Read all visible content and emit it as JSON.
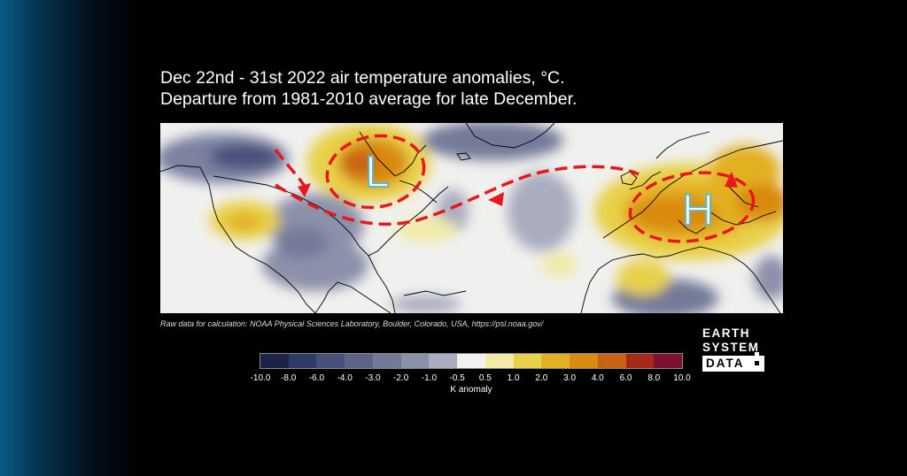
{
  "title": {
    "line1": "Dec 22nd - 31st 2022 air temperature anomalies, °C.",
    "line2": "Departure from 1981-2010 average for late December."
  },
  "map": {
    "low_marker": "L",
    "high_marker": "H",
    "arrow_color": "#e8171c",
    "marker_fill": "#ffffff",
    "marker_outline": "#5fb6c9"
  },
  "source_text": "Raw data for calculation: NOAA Physical Sciences Laboratory, Boulder, Colorado, USA, https://psl.noaa.gov/",
  "colorbar": {
    "label": "K anomaly",
    "ticks": [
      "-10.0",
      "-8.0",
      "-6.0",
      "-4.0",
      "-3.0",
      "-2.0",
      "-1.0",
      "-0.5",
      "0.5",
      "1.0",
      "2.0",
      "3.0",
      "4.0",
      "6.0",
      "8.0",
      "10.0"
    ],
    "colors": [
      "#1c2346",
      "#2f3a66",
      "#474f7a",
      "#5d6488",
      "#737a98",
      "#8c91aa",
      "#a9adbe",
      "#f1f1ef",
      "#f2eaa5",
      "#e8d14a",
      "#e3b023",
      "#d98a10",
      "#c96213",
      "#a8281a",
      "#7d1230"
    ]
  },
  "logo": {
    "line1": "EARTH",
    "line2": "SYSTEM",
    "line3": "DATA"
  }
}
